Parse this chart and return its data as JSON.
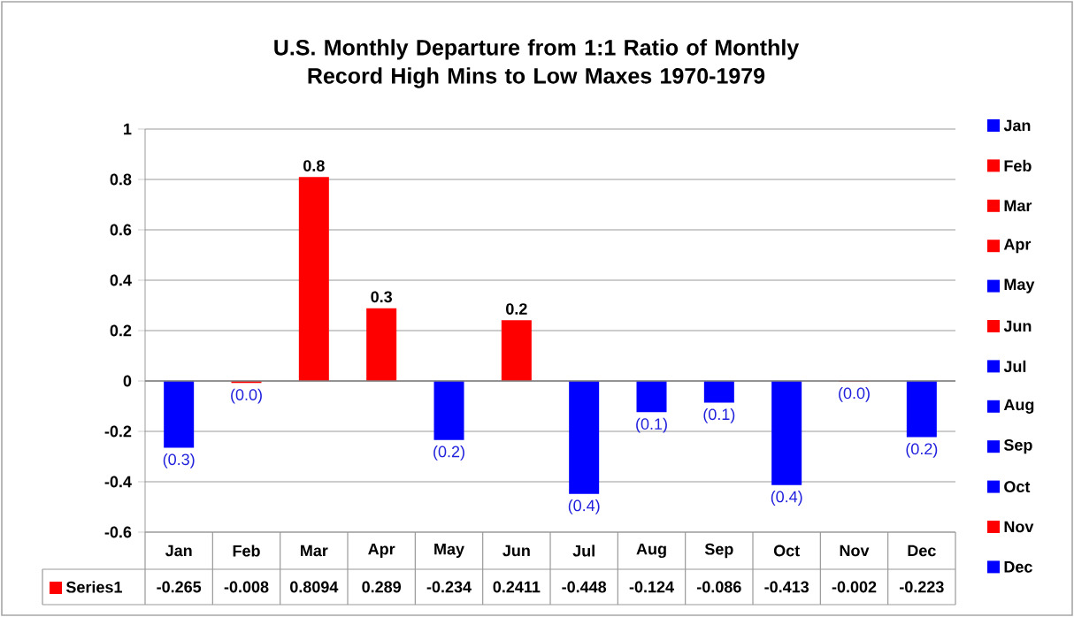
{
  "chart_data": {
    "type": "bar",
    "title": "U.S. Monthly Departure from 1:1 Ratio of Monthly Record High Mins to Low Maxes 1970-1979",
    "categories": [
      "Jan",
      "Feb",
      "Mar",
      "Apr",
      "May",
      "Jun",
      "Jul",
      "Aug",
      "Sep",
      "Oct",
      "Nov",
      "Dec"
    ],
    "series": [
      {
        "name": "Series1",
        "color": "#ff0000",
        "values": [
          -0.265,
          -0.008,
          0.8094,
          0.289,
          -0.234,
          0.2411,
          -0.448,
          -0.124,
          -0.086,
          -0.413,
          -0.002,
          -0.223
        ],
        "colors": [
          "#0000ff",
          "#ff0000",
          "#ff0000",
          "#ff0000",
          "#0000ff",
          "#ff0000",
          "#0000ff",
          "#0000ff",
          "#0000ff",
          "#0000ff",
          "#ff0000",
          "#0000ff"
        ]
      }
    ],
    "annotations": [
      {
        "text": "(0.3)",
        "x": "Jan",
        "y": -0.265
      },
      {
        "text": "(0.0)",
        "x": "Feb",
        "y": -0.008
      },
      {
        "text": "0.8",
        "x": "Mar",
        "y": 0.8094
      },
      {
        "text": "0.3",
        "x": "Apr",
        "y": 0.289
      },
      {
        "text": "(0.2)",
        "x": "May",
        "y": -0.234
      },
      {
        "text": "0.2",
        "x": "Jun",
        "y": 0.2411
      },
      {
        "text": "(0.4)",
        "x": "Jul",
        "y": -0.448
      },
      {
        "text": "(0.1)",
        "x": "Aug",
        "y": -0.124
      },
      {
        "text": "(0.1)",
        "x": "Sep",
        "y": -0.086
      },
      {
        "text": "(0.4)",
        "x": "Oct",
        "y": -0.413
      },
      {
        "text": "(0.0)",
        "x": "Nov",
        "y": -0.002
      },
      {
        "text": "(0.2)",
        "x": "Dec",
        "y": -0.223
      }
    ],
    "ylim": [
      -0.6,
      1
    ],
    "yticks": [
      1,
      0.8,
      0.6,
      0.4,
      0.2,
      0,
      -0.2,
      -0.4,
      -0.6
    ],
    "grid": "y",
    "legend": "bottom left",
    "data_labels": true
  }
}
